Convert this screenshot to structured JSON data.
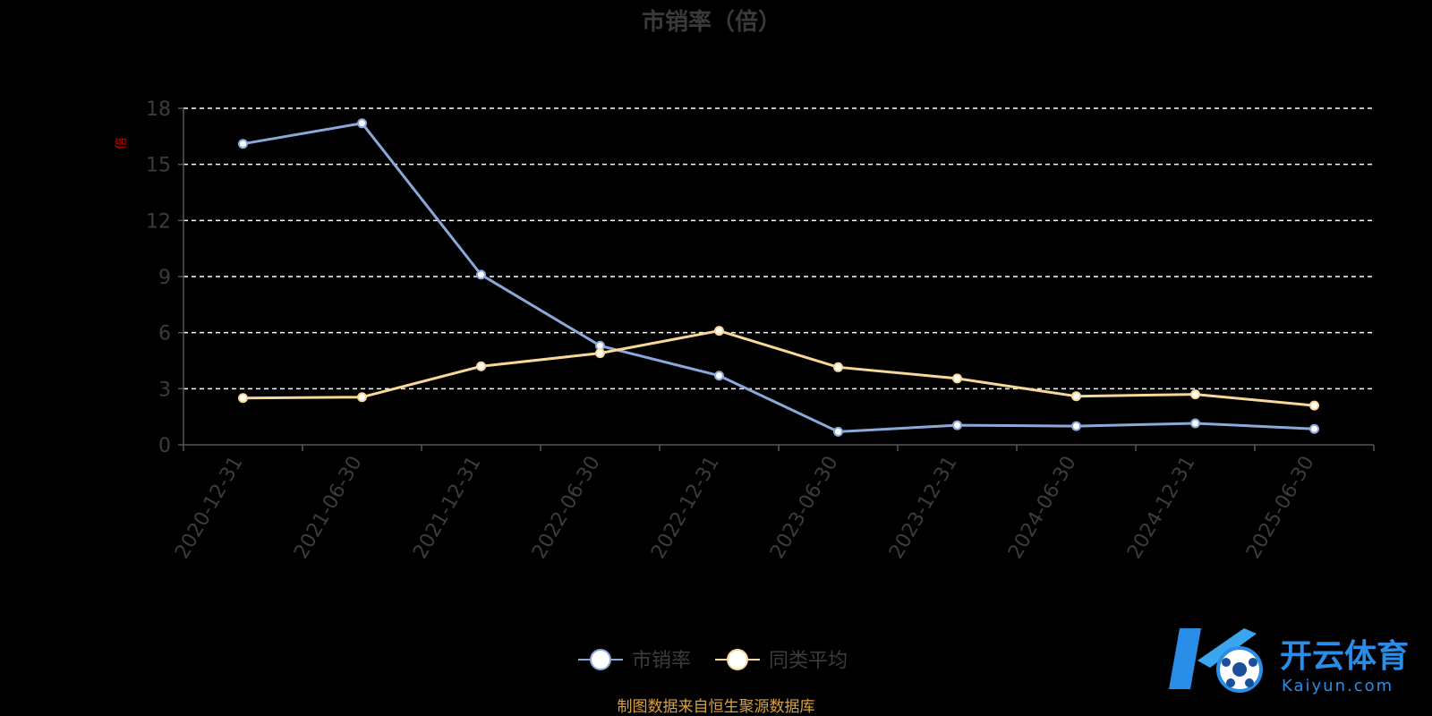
{
  "chart_data": {
    "type": "line",
    "title": "市销率（倍）",
    "unit_mark": "倍",
    "categories": [
      "2020-12-31",
      "2021-06-30",
      "2021-12-31",
      "2022-06-30",
      "2022-12-31",
      "2023-06-30",
      "2023-12-31",
      "2024-06-30",
      "2024-12-31",
      "2025-06-30"
    ],
    "ylim": [
      0,
      18
    ],
    "yticks": [
      "0",
      "3",
      "6",
      "9",
      "12",
      "15",
      "18"
    ],
    "grid": true,
    "legend_position": "bottom",
    "series": [
      {
        "name": "市销率",
        "color": "#8aa8d8",
        "values": [
          16.1,
          17.2,
          9.1,
          5.3,
          3.7,
          0.7,
          1.05,
          1.0,
          1.15,
          0.85
        ]
      },
      {
        "name": "同类平均",
        "color": "#f8d898",
        "values": [
          2.5,
          2.55,
          4.2,
          4.9,
          6.1,
          4.15,
          3.55,
          2.6,
          2.7,
          2.1
        ]
      }
    ]
  },
  "source_note": "制图数据来自恒生聚源数据库",
  "watermark": {
    "cn": "开云体育",
    "en": "Kaiyun.com"
  },
  "colors": {
    "background": "#000000",
    "grid": "#ffffff",
    "axis": "#555555",
    "watermark": "#2a8ee8"
  }
}
